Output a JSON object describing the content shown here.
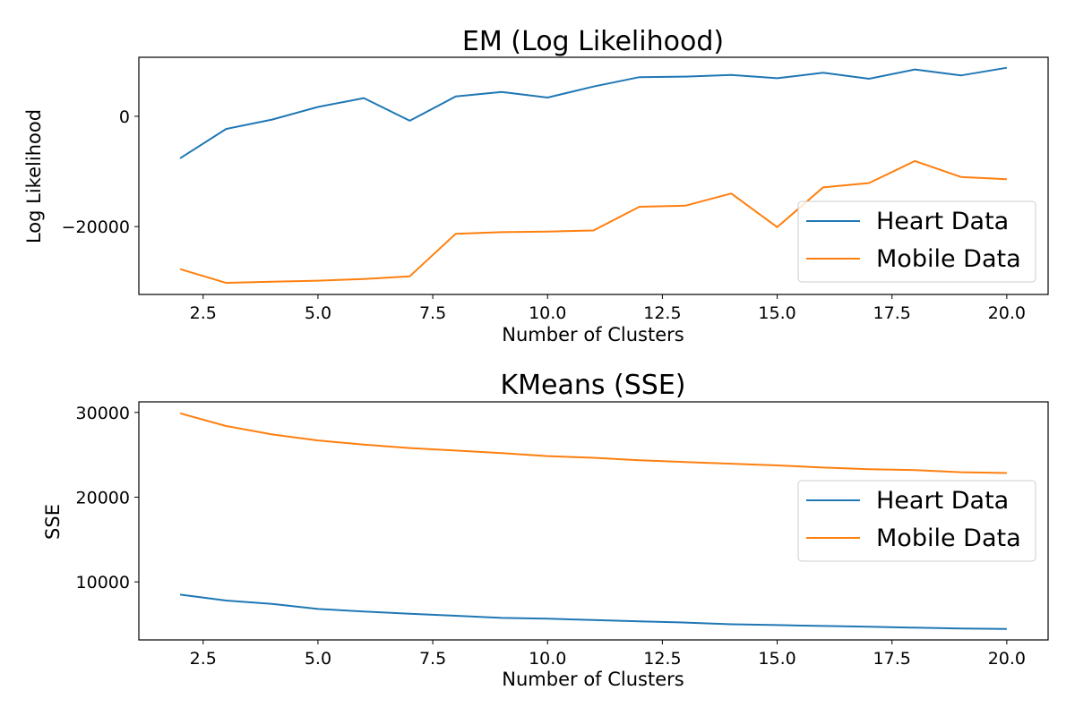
{
  "chart_data": [
    {
      "type": "line",
      "title": "EM (Log Likelihood)",
      "xlabel": "Number of Clusters",
      "ylabel": "Log Likelihood",
      "xlim": [
        1.1,
        20.9
      ],
      "ylim": [
        -32300,
        10700
      ],
      "xticks": [
        2.5,
        5.0,
        7.5,
        10.0,
        12.5,
        15.0,
        17.5,
        20.0
      ],
      "xtick_labels": [
        "2.5",
        "5.0",
        "7.5",
        "10.0",
        "12.5",
        "15.0",
        "17.5",
        "20.0"
      ],
      "yticks": [
        -20000,
        0
      ],
      "ytick_labels": [
        "−20000",
        "0"
      ],
      "grid": false,
      "legend_position": "lower-right",
      "x": [
        2,
        3,
        4,
        5,
        6,
        7,
        8,
        9,
        10,
        11,
        12,
        13,
        14,
        15,
        16,
        17,
        18,
        19,
        20
      ],
      "series": [
        {
          "name": "Heart Data",
          "color": "#1f77b4",
          "values": [
            -7600,
            -2300,
            -600,
            1700,
            3300,
            -800,
            3600,
            4400,
            3400,
            5400,
            7100,
            7200,
            7500,
            6900,
            7900,
            6800,
            8500,
            7400,
            8800
          ]
        },
        {
          "name": "Mobile Data",
          "color": "#ff7f0e",
          "values": [
            -27700,
            -30200,
            -30000,
            -29800,
            -29500,
            -29000,
            -21300,
            -21000,
            -20900,
            -20700,
            -16400,
            -16200,
            -14000,
            -20100,
            -12900,
            -12100,
            -8100,
            -11000,
            -11400
          ]
        }
      ]
    },
    {
      "type": "line",
      "title": "KMeans (SSE)",
      "xlabel": "Number of Clusters",
      "ylabel": "SSE",
      "xlim": [
        1.1,
        20.9
      ],
      "ylim": [
        3150,
        31250
      ],
      "xticks": [
        2.5,
        5.0,
        7.5,
        10.0,
        12.5,
        15.0,
        17.5,
        20.0
      ],
      "xtick_labels": [
        "2.5",
        "5.0",
        "7.5",
        "10.0",
        "12.5",
        "15.0",
        "17.5",
        "20.0"
      ],
      "yticks": [
        10000,
        20000,
        30000
      ],
      "ytick_labels": [
        "10000",
        "20000",
        "30000"
      ],
      "grid": false,
      "legend_position": "center-right",
      "x": [
        2,
        3,
        4,
        5,
        6,
        7,
        8,
        9,
        10,
        11,
        12,
        13,
        14,
        15,
        16,
        17,
        18,
        19,
        20
      ],
      "series": [
        {
          "name": "Heart Data",
          "color": "#1f77b4",
          "values": [
            8500,
            7800,
            7400,
            6800,
            6500,
            6250,
            6000,
            5750,
            5650,
            5500,
            5350,
            5200,
            5000,
            4900,
            4800,
            4700,
            4600,
            4500,
            4450
          ]
        },
        {
          "name": "Mobile Data",
          "color": "#ff7f0e",
          "values": [
            29900,
            28400,
            27400,
            26700,
            26200,
            25800,
            25500,
            25200,
            24850,
            24650,
            24350,
            24150,
            23950,
            23750,
            23500,
            23300,
            23200,
            22950,
            22850
          ]
        }
      ]
    }
  ]
}
